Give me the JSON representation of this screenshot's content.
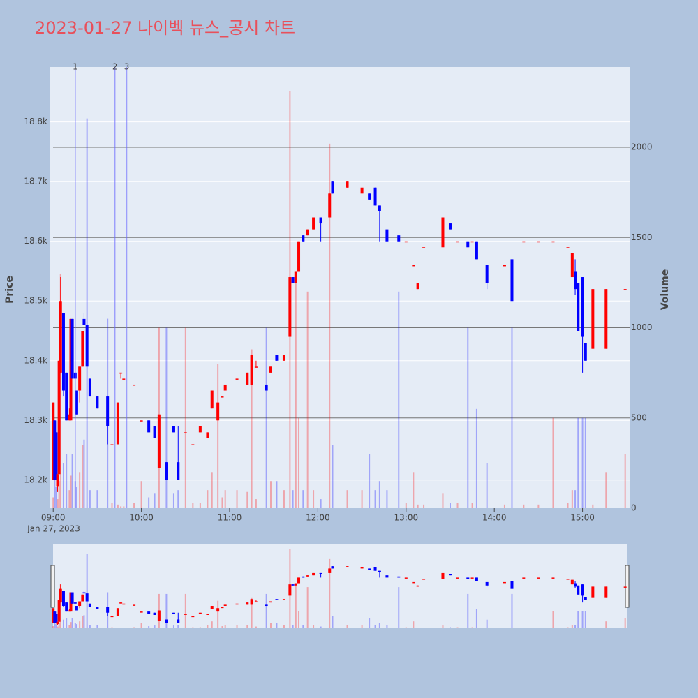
{
  "chart_data": {
    "type": "candlestick",
    "title": "2023-01-27 나이벡 뉴스_공시 차트",
    "y_label": "Price",
    "y2_label": "Volume",
    "date_label": "Jan 27, 2023",
    "increasing_color": "#ff0000",
    "decreasing_color": "#0000ff",
    "x": [
      "09:00",
      "09:01",
      "09:02",
      "09:03",
      "09:04",
      "09:05",
      "09:07",
      "09:09",
      "09:11",
      "09:12",
      "09:13",
      "09:15",
      "09:16",
      "09:18",
      "09:20",
      "09:21",
      "09:23",
      "09:25",
      "09:30",
      "09:37",
      "09:40",
      "09:44",
      "09:46",
      "09:48",
      "09:55",
      "10:00",
      "10:05",
      "10:09",
      "10:12",
      "10:17",
      "10:22",
      "10:25",
      "10:30",
      "10:35",
      "10:40",
      "10:45",
      "10:48",
      "10:52",
      "10:55",
      "10:57",
      "11:05",
      "11:12",
      "11:15",
      "11:18",
      "11:25",
      "11:28",
      "11:32",
      "11:37",
      "11:41",
      "11:43",
      "11:45",
      "11:47",
      "11:50",
      "11:53",
      "11:57",
      "12:02",
      "12:08",
      "12:10",
      "12:20",
      "12:30",
      "12:35",
      "12:39",
      "12:42",
      "12:47",
      "12:55",
      "13:00",
      "13:05",
      "13:08",
      "13:12",
      "13:25",
      "13:30",
      "13:35",
      "13:42",
      "13:45",
      "13:48",
      "13:55",
      "14:07",
      "14:12",
      "14:20",
      "14:30",
      "14:40",
      "14:50",
      "14:53",
      "14:55",
      "14:57",
      "15:00",
      "15:02",
      "15:07",
      "15:16",
      "15:29"
    ],
    "open": [
      18200,
      18300,
      18280,
      18190,
      18210,
      18380,
      18480,
      18380,
      18300,
      18300,
      18470,
      18380,
      18350,
      18350,
      18390,
      18470,
      18460,
      18370,
      18340,
      18340,
      18260,
      18260,
      18380,
      18370,
      18360,
      18300,
      18300,
      18290,
      18220,
      18230,
      18290,
      18230,
      18280,
      18260,
      18280,
      18270,
      18320,
      18300,
      18340,
      18350,
      18370,
      18360,
      18360,
      18390,
      18360,
      18380,
      18410,
      18400,
      18440,
      18540,
      18530,
      18550,
      18610,
      18610,
      18620,
      18640,
      18640,
      18700,
      18690,
      18680,
      18680,
      18690,
      18660,
      18620,
      18610,
      18600,
      18560,
      18520,
      18590,
      18590,
      18630,
      18600,
      18600,
      18600,
      18600,
      18560,
      18560,
      18570,
      18600,
      18600,
      18600,
      18590,
      18540,
      18550,
      18530,
      18540,
      18430,
      18420,
      18420,
      18520
    ],
    "high": [
      18330,
      18300,
      18280,
      18210,
      18400,
      18540,
      18480,
      18380,
      18320,
      18470,
      18470,
      18380,
      18350,
      18390,
      18450,
      18480,
      18460,
      18370,
      18340,
      18340,
      18260,
      18330,
      18380,
      18370,
      18360,
      18300,
      18300,
      18290,
      18310,
      18230,
      18290,
      18290,
      18280,
      18260,
      18290,
      18280,
      18350,
      18330,
      18340,
      18360,
      18370,
      18380,
      18410,
      18400,
      18360,
      18390,
      18410,
      18410,
      18540,
      18540,
      18550,
      18600,
      18610,
      18620,
      18640,
      18640,
      18680,
      18700,
      18700,
      18690,
      18680,
      18690,
      18660,
      18620,
      18610,
      18600,
      18560,
      18530,
      18590,
      18640,
      18630,
      18600,
      18600,
      18600,
      18600,
      18560,
      18560,
      18570,
      18600,
      18600,
      18600,
      18590,
      18580,
      18570,
      18530,
      18540,
      18430,
      18520,
      18520,
      18520
    ],
    "low": [
      18200,
      18200,
      18200,
      18180,
      18210,
      18380,
      18340,
      18300,
      18300,
      18300,
      18370,
      18370,
      18310,
      18330,
      18390,
      18460,
      18390,
      18340,
      18320,
      18260,
      18260,
      18260,
      18370,
      18370,
      18360,
      18300,
      18280,
      18270,
      18220,
      18200,
      18280,
      18200,
      18280,
      18260,
      18280,
      18270,
      18320,
      18300,
      18340,
      18350,
      18370,
      18360,
      18360,
      18390,
      18350,
      18380,
      18400,
      18400,
      18440,
      18530,
      18530,
      18550,
      18600,
      18610,
      18620,
      18600,
      18640,
      18680,
      18690,
      18680,
      18670,
      18660,
      18600,
      18600,
      18600,
      18600,
      18560,
      18520,
      18590,
      18590,
      18620,
      18600,
      18590,
      18600,
      18570,
      18520,
      18560,
      18500,
      18600,
      18600,
      18600,
      18590,
      18540,
      18510,
      18450,
      18380,
      18400,
      18420,
      18420,
      18520
    ],
    "close": [
      18330,
      18200,
      18200,
      18210,
      18400,
      18500,
      18350,
      18300,
      18310,
      18470,
      18370,
      18370,
      18310,
      18390,
      18450,
      18460,
      18390,
      18340,
      18320,
      18290,
      18260,
      18330,
      18380,
      18370,
      18360,
      18300,
      18280,
      18270,
      18310,
      18200,
      18280,
      18200,
      18280,
      18260,
      18290,
      18280,
      18350,
      18330,
      18340,
      18360,
      18370,
      18380,
      18410,
      18390,
      18350,
      18390,
      18400,
      18410,
      18540,
      18530,
      18550,
      18600,
      18600,
      18620,
      18640,
      18630,
      18680,
      18680,
      18700,
      18690,
      18670,
      18660,
      18650,
      18600,
      18600,
      18600,
      18560,
      18530,
      18590,
      18640,
      18620,
      18600,
      18590,
      18600,
      18570,
      18530,
      18560,
      18500,
      18600,
      18600,
      18600,
      18590,
      18580,
      18520,
      18450,
      18440,
      18400,
      18520,
      18520,
      18520
    ],
    "volume": [
      60,
      200,
      120,
      50,
      150,
      1300,
      250,
      300,
      100,
      180,
      300,
      150,
      120,
      200,
      350,
      380,
      2160,
      100,
      100,
      1050,
      30,
      20,
      10,
      10,
      30,
      150,
      60,
      80,
      1000,
      1000,
      80,
      100,
      1000,
      30,
      30,
      100,
      200,
      800,
      60,
      100,
      100,
      90,
      880,
      50,
      1000,
      150,
      150,
      100,
      2310,
      100,
      1250,
      500,
      100,
      1200,
      100,
      50,
      2020,
      350,
      100,
      100,
      300,
      100,
      150,
      100,
      1200,
      30,
      200,
      20,
      20,
      80,
      30,
      30,
      1000,
      30,
      550,
      250,
      20,
      1000,
      20,
      20,
      500,
      30,
      100,
      100,
      500,
      500,
      500,
      20,
      200,
      300
    ],
    "news_markers": [
      {
        "time": "09:15",
        "label": "1"
      },
      {
        "time": "09:42",
        "label": "2"
      },
      {
        "time": "09:50",
        "label": "3"
      }
    ],
    "xlim": [
      "08:58",
      "15:32"
    ],
    "xticks": [
      "09:00",
      "10:00",
      "11:00",
      "12:00",
      "13:00",
      "14:00",
      "15:00"
    ],
    "ylim": [
      18153,
      18892
    ],
    "yticks": [
      {
        "value": 18200,
        "label": "18.2k"
      },
      {
        "value": 18300,
        "label": "18.3k"
      },
      {
        "value": 18400,
        "label": "18.4k"
      },
      {
        "value": 18500,
        "label": "18.5k"
      },
      {
        "value": 18600,
        "label": "18.6k"
      },
      {
        "value": 18700,
        "label": "18.7k"
      },
      {
        "value": 18800,
        "label": "18.8k"
      }
    ],
    "y2lim": [
      0,
      2445
    ],
    "y2ticks": [
      0,
      500,
      1000,
      1500,
      2000
    ],
    "grid": true,
    "range_slider": true
  }
}
